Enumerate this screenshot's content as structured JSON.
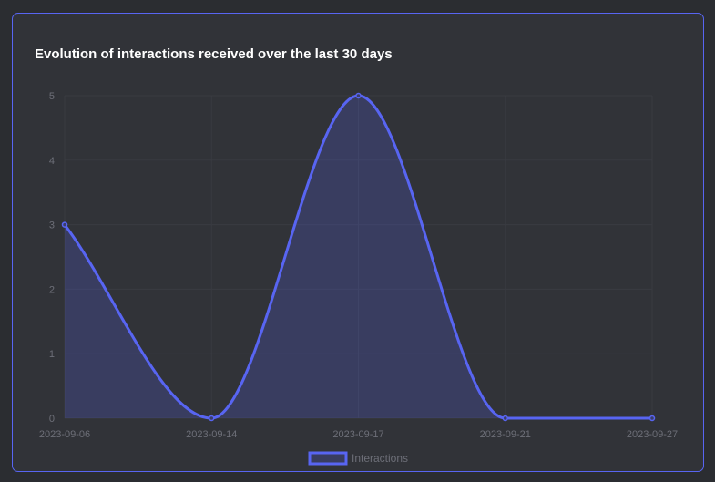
{
  "card": {
    "title": "Evolution of interactions received over the last 30 days"
  },
  "colors": {
    "page_background": "#2b2d31",
    "card_background": "#313338",
    "card_border": "#5865f2",
    "series_line": "#5865f2",
    "series_fill": "rgba(88,101,242,0.22)",
    "grid": "#393b41",
    "tick_text": "#6d6f78"
  },
  "chart_data": {
    "type": "area",
    "title": "Evolution of interactions received over the last 30 days",
    "x": [
      "2023-09-06",
      "2023-09-14",
      "2023-09-17",
      "2023-09-21",
      "2023-09-27"
    ],
    "series": [
      {
        "name": "Interactions",
        "values": [
          3,
          0,
          5,
          0,
          0
        ]
      }
    ],
    "ylim": [
      0,
      5
    ],
    "yticks": [
      0,
      1,
      2,
      3,
      4,
      5
    ],
    "grid": true,
    "smooth": true,
    "legend": "bottom-center"
  }
}
